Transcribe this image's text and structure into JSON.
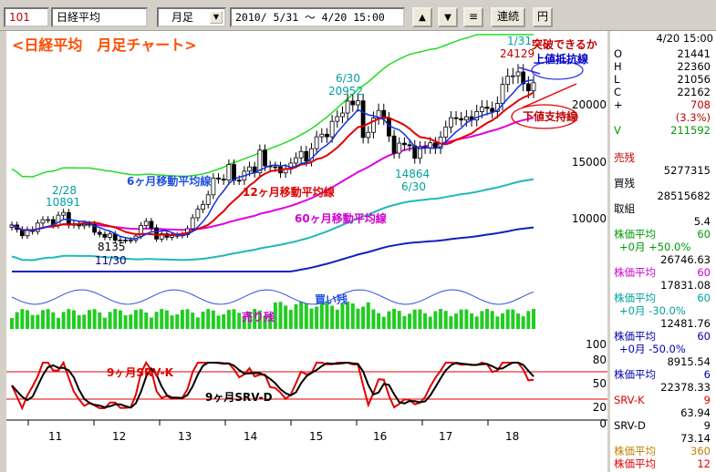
{
  "toolbar": {
    "code": "101",
    "name": "日経平均",
    "period": "月足",
    "range": "2010/ 5/31 ～ 4/20 15:00",
    "up_icon": "▲",
    "down_icon": "▼",
    "menu_icon": "≡",
    "renzoku": "連続",
    "yen": "円"
  },
  "side": {
    "date": "4/20 15:00",
    "ohlc": [
      {
        "k": "O",
        "v": "21441"
      },
      {
        "k": "H",
        "v": "22360"
      },
      {
        "k": "L",
        "v": "21056"
      },
      {
        "k": "C",
        "v": "22162"
      },
      {
        "k": "+",
        "v": "708"
      },
      {
        "k": "",
        "v": "(3.3%)"
      },
      {
        "k": "V",
        "v": "211592"
      }
    ],
    "zan": [
      {
        "label": "売残",
        "value": "5277315",
        "color": "#c00000"
      },
      {
        "label": "買残",
        "value": "28515682",
        "color": "#000000"
      },
      {
        "label": "取組",
        "value": "5.4",
        "color": "#000000"
      }
    ],
    "ma": [
      {
        "label": "株価平均",
        "p": "60",
        "sub": "+0月 +50.0%",
        "value": "26746.63",
        "color": "#009a00"
      },
      {
        "label": "株価平均",
        "p": "60",
        "sub": "",
        "value": "17831.08",
        "color": "#d000d0"
      },
      {
        "label": "株価平均",
        "p": "60",
        "sub": "+0月 -30.0%",
        "value": "12481.76",
        "color": "#00a0a0"
      },
      {
        "label": "株価平均",
        "p": "60",
        "sub": "+0月 -50.0%",
        "value": "8915.54",
        "color": "#0000b0"
      },
      {
        "label": "株価平均",
        "p": "6",
        "sub": "",
        "value": "22378.33",
        "color": "#0000b0"
      },
      {
        "label": "SRV-K",
        "p": "9",
        "sub": "",
        "value": "63.94",
        "color": "#e00000"
      },
      {
        "label": "SRV-D",
        "p": "9",
        "sub": "",
        "value": "73.14",
        "color": "#000000"
      },
      {
        "label": "株価平均",
        "p": "360",
        "sub": "",
        "value": "",
        "color": "#c08000"
      },
      {
        "label": "株価平均",
        "p": "12",
        "sub": "",
        "value": "",
        "color": "#e00000"
      }
    ]
  },
  "chart_data": {
    "type": "candlestick",
    "title": "<日経平均　月足チャート>",
    "x_tick_labels": [
      "11",
      "12",
      "13",
      "14",
      "15",
      "16",
      "17",
      "18"
    ],
    "price_axis": {
      "ticks": [
        10000,
        15000,
        20000
      ],
      "labels": [
        "10000",
        "15000",
        "20000"
      ]
    },
    "osc_axis": {
      "ticks": [
        0,
        20,
        50,
        80,
        100
      ],
      "labels": [
        "100",
        "80",
        "50",
        "20",
        "0"
      ],
      "guide_lines": [
        20,
        80
      ]
    },
    "annotations": {
      "peak_2010": {
        "date": "2/28",
        "value": "10891"
      },
      "low_2011": {
        "date": "11/30",
        "value": "8135"
      },
      "peak_2015": {
        "date": "6/30",
        "value": "20952"
      },
      "low_2016": {
        "date": "6/30",
        "value": "14864"
      },
      "peak_2018": {
        "date": "1/31",
        "value": "24129"
      },
      "resistance_question": "突破できるか",
      "resistance_label": "上値抵抗線",
      "support_label": "下値支持線",
      "ma6_label": "6ヶ月移動平均線",
      "ma12_label": "12ヶ月移動平均線",
      "ma60_label": "60ヶ月移動平均線",
      "kaizan_label": "買い残",
      "urizan_label": "売り残",
      "srvk_label": "9ヶ月SRV-K",
      "srvd_label": "9ヶ月SRV-D"
    },
    "candles_monthly_close": [
      9769,
      9382,
      8829,
      9360,
      9202,
      9937,
      10228,
      10238,
      9755,
      10624,
      10857,
      9755,
      9850,
      9694,
      9816,
      9833,
      9131,
      8955,
      8700,
      8988,
      8434,
      8455,
      8399,
      8455,
      8802,
      9723,
      10084,
      9520,
      8543,
      9007,
      8695,
      8840,
      8870,
      8928,
      9447,
      10395,
      11139,
      11559,
      12397,
      13860,
      13774,
      13677,
      15035,
      13669,
      13668,
      14456,
      14828,
      14310,
      16291,
      14914,
      14841,
      14827,
      14304,
      14632,
      15162,
      15621,
      16173,
      15328,
      16414,
      17451,
      17674,
      17450,
      18798,
      19206,
      19520,
      20563,
      20236,
      20585,
      17388,
      17840,
      19083,
      19747,
      19034,
      17518,
      16027,
      16897,
      16759,
      16666,
      15576,
      16569,
      16450,
      16926,
      16449,
      17425,
      18308,
      19114,
      19041,
      18909,
      19197,
      18909,
      19650,
      20033,
      19925,
      19646,
      20356,
      22011,
      22725,
      22765,
      23098,
      22068,
      21454,
      22162
    ]
  }
}
